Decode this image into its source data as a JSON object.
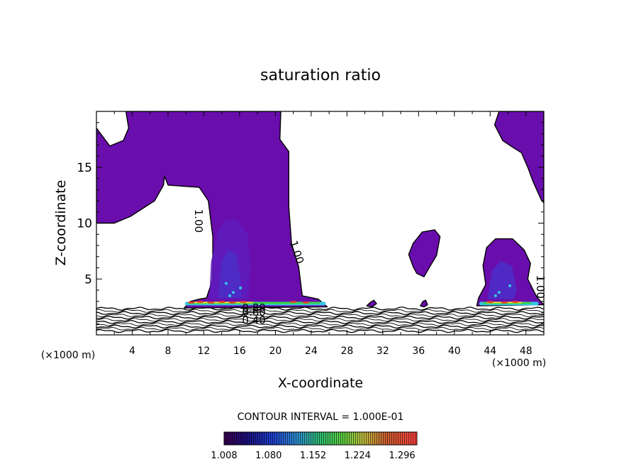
{
  "chart_data": {
    "type": "contour",
    "title": "saturation ratio",
    "xlabel": "X-coordinate",
    "ylabel": "Z-coordinate",
    "x_unit": "(×1000 m)",
    "x_unit_right": "(×1000 m)",
    "xlim": [
      0,
      50
    ],
    "ylim": [
      0,
      20
    ],
    "x_ticks": [
      4,
      8,
      12,
      16,
      20,
      24,
      28,
      32,
      36,
      40,
      44,
      48
    ],
    "y_ticks": [
      5,
      10,
      15
    ],
    "contour_interval_label": "CONTOUR INTERVAL = 1.000E-01",
    "colorbar_min": 1.008,
    "colorbar_max": 1.32,
    "colorbar_ticks": [
      "1.008",
      "1.080",
      "1.152",
      "1.224",
      "1.296"
    ],
    "contour_labels": [
      {
        "text": "1.00",
        "x": 11.0,
        "z": 10.2,
        "rotate": 90
      },
      {
        "text": "1.00",
        "x": 22.0,
        "z": 7.3,
        "rotate": 72
      },
      {
        "text": "1.00",
        "x": 49.2,
        "z": 4.3,
        "rotate": 90
      },
      {
        "text": "0.80",
        "x": 17.6,
        "z": 2.1,
        "rotate": 0
      },
      {
        "text": "0.60",
        "x": 17.6,
        "z": 1.7,
        "rotate": 0
      },
      {
        "text": "0.40",
        "x": 17.6,
        "z": 1.0,
        "rotate": 0
      }
    ],
    "supersaturated_regions": [
      {
        "name": "main-plume",
        "outline": [
          [
            9.8,
            2.4
          ],
          [
            10.5,
            3.0
          ],
          [
            11.5,
            3.2
          ],
          [
            12.3,
            3.3
          ],
          [
            13.0,
            5.0
          ],
          [
            13.0,
            8.8
          ],
          [
            12.5,
            12.0
          ],
          [
            11.5,
            13.2
          ],
          [
            8.0,
            13.4
          ],
          [
            7.6,
            14.2
          ],
          [
            7.5,
            13.4
          ],
          [
            6.5,
            12.0
          ],
          [
            3.8,
            10.6
          ],
          [
            2.0,
            10.0
          ],
          [
            0,
            10.0
          ],
          [
            0,
            18.5
          ],
          [
            1.5,
            16.9
          ],
          [
            3.0,
            17.4
          ],
          [
            3.6,
            18.5
          ],
          [
            3.3,
            20
          ],
          [
            20.6,
            20
          ],
          [
            20.5,
            17.5
          ],
          [
            21.5,
            16.4
          ],
          [
            21.5,
            11.5
          ],
          [
            21.8,
            8.2
          ],
          [
            22.6,
            6.1
          ],
          [
            23.0,
            3.5
          ],
          [
            24.8,
            3.2
          ],
          [
            25.8,
            2.5
          ]
        ]
      },
      {
        "name": "dot-30",
        "outline": [
          [
            30.2,
            2.6
          ],
          [
            30.6,
            2.9
          ],
          [
            31.0,
            3.1
          ],
          [
            31.3,
            2.8
          ],
          [
            30.8,
            2.5
          ]
        ]
      },
      {
        "name": "dot-36",
        "outline": [
          [
            36.2,
            2.6
          ],
          [
            36.5,
            3.0
          ],
          [
            36.8,
            3.1
          ],
          [
            37.0,
            2.7
          ],
          [
            36.6,
            2.5
          ]
        ]
      },
      {
        "name": "mid-blob",
        "outline": [
          [
            35.8,
            5.5
          ],
          [
            36.6,
            5.2
          ],
          [
            37.4,
            6.3
          ],
          [
            38.0,
            7.1
          ],
          [
            38.4,
            8.8
          ],
          [
            37.8,
            9.4
          ],
          [
            36.4,
            9.2
          ],
          [
            35.4,
            8.2
          ],
          [
            34.9,
            7.2
          ],
          [
            35.4,
            6.1
          ]
        ]
      },
      {
        "name": "right-plume",
        "outline": [
          [
            42.5,
            2.6
          ],
          [
            42.7,
            3.3
          ],
          [
            43.5,
            4.5
          ],
          [
            43.2,
            6.2
          ],
          [
            43.6,
            7.8
          ],
          [
            44.6,
            8.6
          ],
          [
            46.5,
            8.6
          ],
          [
            47.8,
            7.6
          ],
          [
            48.5,
            6.4
          ],
          [
            48.2,
            5.0
          ],
          [
            49.2,
            3.4
          ],
          [
            50,
            2.7
          ]
        ]
      },
      {
        "name": "top-right",
        "outline": [
          [
            50,
            20
          ],
          [
            45,
            20
          ],
          [
            44.5,
            18.8
          ],
          [
            45.4,
            17.4
          ],
          [
            46.5,
            16.8
          ],
          [
            47.5,
            16.3
          ],
          [
            48.2,
            15.0
          ],
          [
            48.8,
            13.7
          ],
          [
            49.7,
            12.1
          ],
          [
            50,
            11.8
          ]
        ]
      }
    ],
    "colors": {
      "fill": "#6a0dad",
      "inner": "#5e1cbc",
      "core": "#4a2fc8",
      "cyan": "#35c8e8",
      "green": "#39d04a",
      "yellow": "#e8e22a",
      "red": "#e8402a",
      "contour_line": "#000000"
    }
  }
}
